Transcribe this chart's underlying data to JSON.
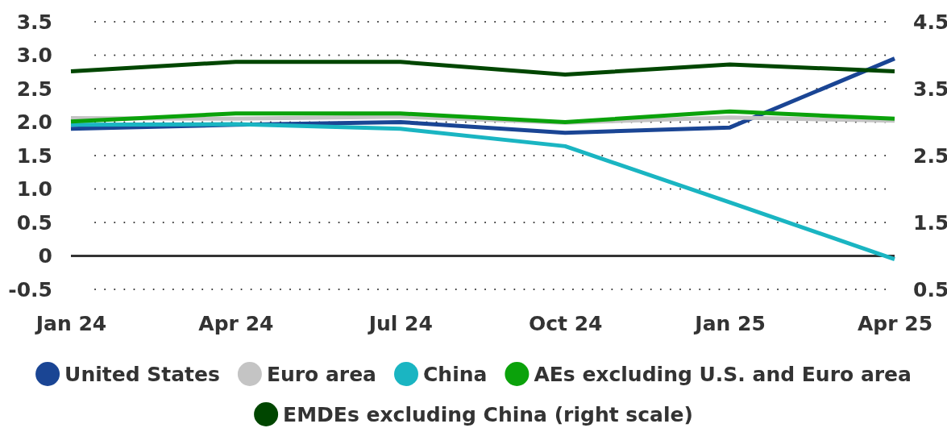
{
  "chart_data": {
    "type": "line",
    "categories": [
      "Jan 24",
      "Apr 24",
      "Jul 24",
      "Oct 24",
      "Jan 25",
      "Apr 25"
    ],
    "ylim": [
      -0.5,
      3.5
    ],
    "yticks": [
      -0.5,
      0,
      0.5,
      {
        "value": 1,
        "label": "1.0"
      },
      1.5,
      {
        "value": 2,
        "label": "2.0"
      },
      2.5,
      {
        "value": 3,
        "label": "3.0"
      },
      3.5
    ],
    "y2lim": [
      0.5,
      4.5
    ],
    "y2ticks": [
      0.5,
      1.5,
      2.5,
      3.5,
      4.5
    ],
    "grid": "y",
    "legend": "bottom",
    "line_style": "solid",
    "marker": "none",
    "ref_lines": [
      {
        "axis": "y",
        "value": 0,
        "color": "#333333"
      }
    ],
    "series": [
      {
        "name": "United States",
        "color": "#1a4594",
        "values": [
          1.9,
          1.96,
          2.0,
          1.84,
          1.92,
          2.95
        ]
      },
      {
        "name": "Euro area",
        "color": "#c4c4c4",
        "values": [
          2.06,
          2.05,
          2.08,
          1.99,
          2.07,
          2.02
        ]
      },
      {
        "name": "China",
        "color": "#1ab5c2",
        "values": [
          1.96,
          1.97,
          1.9,
          1.64,
          0.8,
          -0.05
        ]
      },
      {
        "name": "AEs excluding U.S. and Euro area",
        "color": "#0ba20b",
        "values": [
          2.01,
          2.13,
          2.13,
          2.0,
          2.16,
          2.05
        ]
      },
      {
        "name": "EMDEs excluding China (right scale)",
        "color": "#004600",
        "axis": "y2",
        "values": [
          3.76,
          3.9,
          3.9,
          3.71,
          3.86,
          3.76
        ]
      }
    ]
  }
}
